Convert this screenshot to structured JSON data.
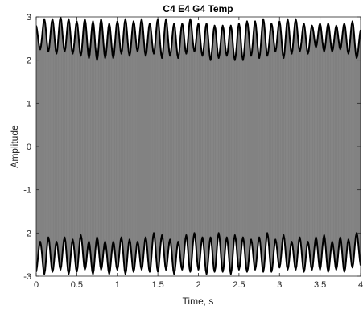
{
  "chart_data": {
    "type": "line",
    "title": "C4 E4 G4 Temp",
    "xlabel": "Time, s",
    "ylabel": "Amplitude",
    "xlim": [
      0,
      4
    ],
    "ylim": [
      -3,
      3
    ],
    "xticks": [
      "0",
      "0.5",
      "1",
      "1.5",
      "2",
      "2.5",
      "3",
      "3.5",
      "4"
    ],
    "yticks": [
      "-3",
      "-2",
      "-1",
      "0",
      "1",
      "2",
      "3"
    ],
    "grid": false,
    "colors": {
      "signal": "#808080",
      "envelope": "#000000"
    },
    "series": [
      {
        "role": "signal",
        "description_values": "dense oscillating waveform filling between envelopes",
        "x_range": [
          0,
          4
        ],
        "amplitude_range": [
          -3,
          3
        ]
      },
      {
        "role": "upper-envelope",
        "x": [
          0.0,
          0.05,
          0.1,
          0.15,
          0.2,
          0.25,
          0.3,
          0.35,
          0.4,
          0.45,
          0.5,
          0.55,
          0.6,
          0.65,
          0.7,
          0.75,
          0.8,
          0.85,
          0.9,
          0.95,
          1.0,
          1.05,
          1.1,
          1.15,
          1.2,
          1.25,
          1.3,
          1.35,
          1.4,
          1.45,
          1.5,
          1.55,
          1.6,
          1.65,
          1.7,
          1.75,
          1.8,
          1.85,
          1.9,
          1.95,
          2.0,
          2.05,
          2.1,
          2.15,
          2.2,
          2.25,
          2.3,
          2.35,
          2.4,
          2.45,
          2.5,
          2.55,
          2.6,
          2.65,
          2.7,
          2.75,
          2.8,
          2.85,
          2.9,
          2.95,
          3.0,
          3.05,
          3.1,
          3.15,
          3.2,
          3.25,
          3.3,
          3.35,
          3.4,
          3.45,
          3.5,
          3.55,
          3.6,
          3.65,
          3.7,
          3.75,
          3.8,
          3.85,
          3.9,
          3.95,
          4.0
        ],
        "values": [
          2.8,
          2.25,
          2.95,
          2.2,
          2.95,
          2.15,
          3.0,
          2.2,
          2.95,
          2.15,
          2.9,
          2.1,
          2.95,
          2.05,
          2.9,
          2.0,
          2.95,
          2.05,
          2.85,
          2.05,
          2.9,
          2.15,
          2.95,
          2.1,
          2.9,
          2.2,
          2.95,
          2.1,
          2.85,
          2.15,
          2.95,
          2.05,
          2.95,
          2.1,
          2.85,
          2.05,
          2.85,
          2.15,
          2.95,
          2.2,
          2.85,
          2.1,
          2.85,
          2.0,
          2.8,
          2.05,
          2.8,
          2.1,
          2.8,
          2.0,
          2.85,
          2.0,
          2.9,
          2.1,
          2.9,
          2.05,
          2.95,
          2.1,
          2.85,
          2.2,
          2.9,
          2.05,
          2.95,
          2.15,
          2.95,
          2.2,
          2.85,
          2.15,
          2.8,
          2.3,
          2.85,
          2.2,
          2.85,
          2.2,
          2.8,
          2.25,
          2.85,
          2.15,
          2.9,
          2.05,
          2.7
        ]
      },
      {
        "role": "lower-envelope",
        "x": [
          0.0,
          0.05,
          0.1,
          0.15,
          0.2,
          0.25,
          0.3,
          0.35,
          0.4,
          0.45,
          0.5,
          0.55,
          0.6,
          0.65,
          0.7,
          0.75,
          0.8,
          0.85,
          0.9,
          0.95,
          1.0,
          1.05,
          1.1,
          1.15,
          1.2,
          1.25,
          1.3,
          1.35,
          1.4,
          1.45,
          1.5,
          1.55,
          1.6,
          1.65,
          1.7,
          1.75,
          1.8,
          1.85,
          1.9,
          1.95,
          2.0,
          2.05,
          2.1,
          2.15,
          2.2,
          2.25,
          2.3,
          2.35,
          2.4,
          2.45,
          2.5,
          2.55,
          2.6,
          2.65,
          2.7,
          2.75,
          2.8,
          2.85,
          2.9,
          2.95,
          3.0,
          3.05,
          3.1,
          3.15,
          3.2,
          3.25,
          3.3,
          3.35,
          3.4,
          3.45,
          3.5,
          3.55,
          3.6,
          3.65,
          3.7,
          3.75,
          3.8,
          3.85,
          3.9,
          3.95,
          4.0
        ],
        "values": [
          -2.9,
          -2.2,
          -2.95,
          -2.1,
          -2.9,
          -2.2,
          -2.85,
          -2.1,
          -2.95,
          -2.15,
          -2.9,
          -2.05,
          -2.85,
          -2.2,
          -2.95,
          -2.1,
          -2.85,
          -2.2,
          -2.95,
          -2.2,
          -2.85,
          -2.1,
          -2.95,
          -2.15,
          -2.9,
          -2.2,
          -2.85,
          -2.1,
          -2.9,
          -2.0,
          -2.9,
          -2.05,
          -2.85,
          -2.15,
          -2.95,
          -2.2,
          -2.85,
          -2.05,
          -2.9,
          -2.0,
          -2.85,
          -2.1,
          -2.95,
          -2.1,
          -2.9,
          -2.0,
          -2.9,
          -2.1,
          -2.95,
          -2.05,
          -2.85,
          -2.1,
          -2.9,
          -2.15,
          -2.85,
          -2.1,
          -2.9,
          -2.0,
          -2.9,
          -2.15,
          -2.8,
          -2.05,
          -2.85,
          -2.2,
          -2.85,
          -2.1,
          -2.9,
          -2.2,
          -2.85,
          -2.1,
          -2.85,
          -2.05,
          -2.9,
          -2.2,
          -2.85,
          -2.1,
          -2.9,
          -2.15,
          -2.8,
          -2.0,
          -2.75
        ]
      }
    ]
  }
}
